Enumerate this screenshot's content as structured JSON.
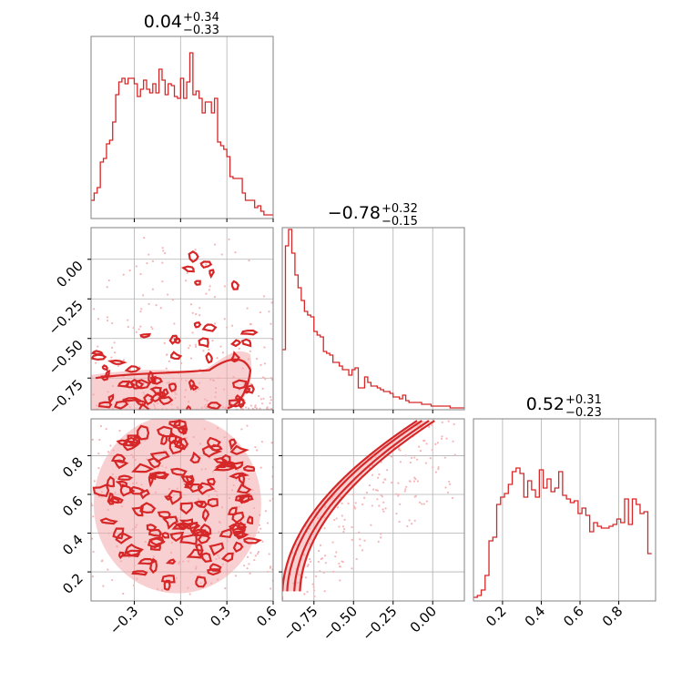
{
  "colors": {
    "accent": "#d62728",
    "contour_fill": "#f3a9ac",
    "frame": "#808080",
    "grid": "#b0b0b0"
  },
  "chart_data": [
    {
      "type": "histogram",
      "panel": "p00",
      "title": {
        "median": "0.04",
        "plus": "+0.34",
        "minus": "−0.33"
      },
      "xlim": [
        -0.58,
        0.6
      ],
      "ylim": [
        0,
        1
      ],
      "x_ticks": [
        -0.3,
        0.0,
        0.3,
        0.6
      ],
      "bin_start": -0.58,
      "bin_width": 0.02,
      "values": [
        0.1,
        0.14,
        0.17,
        0.31,
        0.33,
        0.41,
        0.43,
        0.53,
        0.68,
        0.75,
        0.77,
        0.74,
        0.77,
        0.77,
        0.74,
        0.67,
        0.71,
        0.76,
        0.71,
        0.69,
        0.74,
        0.69,
        0.82,
        0.76,
        0.68,
        0.74,
        0.73,
        0.67,
        0.66,
        0.77,
        0.66,
        0.75,
        0.91,
        0.68,
        0.7,
        0.66,
        0.58,
        0.64,
        0.64,
        0.58,
        0.66,
        0.42,
        0.4,
        0.38,
        0.34,
        0.23,
        0.22,
        0.22,
        0.22,
        0.14,
        0.1,
        0.1,
        0.1,
        0.06,
        0.07,
        0.04,
        0.02,
        0.02,
        0.02
      ]
    },
    {
      "type": "scatter_contour",
      "panel": "p10",
      "xlim": [
        -0.58,
        0.6
      ],
      "ylim": [
        -0.95,
        0.2
      ],
      "x_ticks": [
        -0.3,
        0.0,
        0.3,
        0.6
      ],
      "y_ticks": [
        0.0,
        -0.25,
        -0.5,
        -0.75
      ],
      "y_tick_labels": [
        "0.00",
        "−0.25",
        "−0.50",
        "−0.75"
      ]
    },
    {
      "type": "histogram",
      "panel": "p11",
      "title": {
        "median": "−0.78",
        "plus": "+0.32",
        "minus": "−0.15"
      },
      "xlim": [
        -0.95,
        0.2
      ],
      "ylim": [
        0,
        1
      ],
      "x_ticks": [
        -0.75,
        -0.5,
        -0.25,
        0.0
      ],
      "bin_start": -0.95,
      "bin_width": 0.02,
      "values": [
        0.33,
        0.9,
        0.99,
        0.86,
        0.74,
        0.67,
        0.6,
        0.54,
        0.52,
        0.51,
        0.43,
        0.41,
        0.4,
        0.32,
        0.31,
        0.3,
        0.26,
        0.26,
        0.24,
        0.22,
        0.22,
        0.19,
        0.22,
        0.23,
        0.12,
        0.12,
        0.18,
        0.15,
        0.13,
        0.13,
        0.12,
        0.11,
        0.1,
        0.1,
        0.09,
        0.07,
        0.07,
        0.06,
        0.08,
        0.05,
        0.04,
        0.04,
        0.04,
        0.04,
        0.03,
        0.03,
        0.03,
        0.02,
        0.02,
        0.02,
        0.02,
        0.02,
        0.02,
        0.01,
        0.01,
        0.01,
        0.01,
        0.01
      ]
    },
    {
      "type": "scatter_contour",
      "panel": "p20",
      "xlim": [
        -0.58,
        0.6
      ],
      "ylim": [
        0.05,
        0.99
      ],
      "x_ticks": [
        -0.3,
        0.0,
        0.3,
        0.6
      ],
      "x_tick_labels": [
        "−0.3",
        "0.0",
        "0.3",
        "0.6"
      ],
      "y_ticks": [
        0.2,
        0.4,
        0.6,
        0.8
      ],
      "y_tick_labels": [
        "0.2",
        "0.4",
        "0.6",
        "0.8"
      ]
    },
    {
      "type": "scatter_contour",
      "panel": "p21",
      "xlim": [
        -0.95,
        0.2
      ],
      "ylim": [
        0.05,
        0.99
      ],
      "x_ticks": [
        -0.75,
        -0.5,
        -0.25,
        0.0
      ],
      "x_tick_labels": [
        "−0.75",
        "−0.50",
        "−0.25",
        "0.00"
      ],
      "y_ticks": [
        0.2,
        0.4,
        0.6,
        0.8
      ]
    },
    {
      "type": "histogram",
      "panel": "p22",
      "title": {
        "median": "0.52",
        "plus": "+0.31",
        "minus": "−0.23"
      },
      "xlim": [
        0.05,
        0.99
      ],
      "ylim": [
        0,
        1
      ],
      "x_ticks": [
        0.2,
        0.4,
        0.6,
        0.8
      ],
      "x_tick_labels": [
        "0.2",
        "0.4",
        "0.6",
        "0.8"
      ],
      "bin_start": 0.05,
      "bin_width": 0.02,
      "values": [
        0.02,
        0.03,
        0.06,
        0.14,
        0.33,
        0.35,
        0.53,
        0.57,
        0.59,
        0.64,
        0.71,
        0.73,
        0.7,
        0.57,
        0.66,
        0.61,
        0.57,
        0.72,
        0.62,
        0.67,
        0.6,
        0.62,
        0.71,
        0.58,
        0.56,
        0.54,
        0.55,
        0.48,
        0.51,
        0.47,
        0.38,
        0.43,
        0.41,
        0.4,
        0.4,
        0.41,
        0.42,
        0.45,
        0.43,
        0.56,
        0.42,
        0.56,
        0.53,
        0.48,
        0.49,
        0.26
      ]
    }
  ]
}
